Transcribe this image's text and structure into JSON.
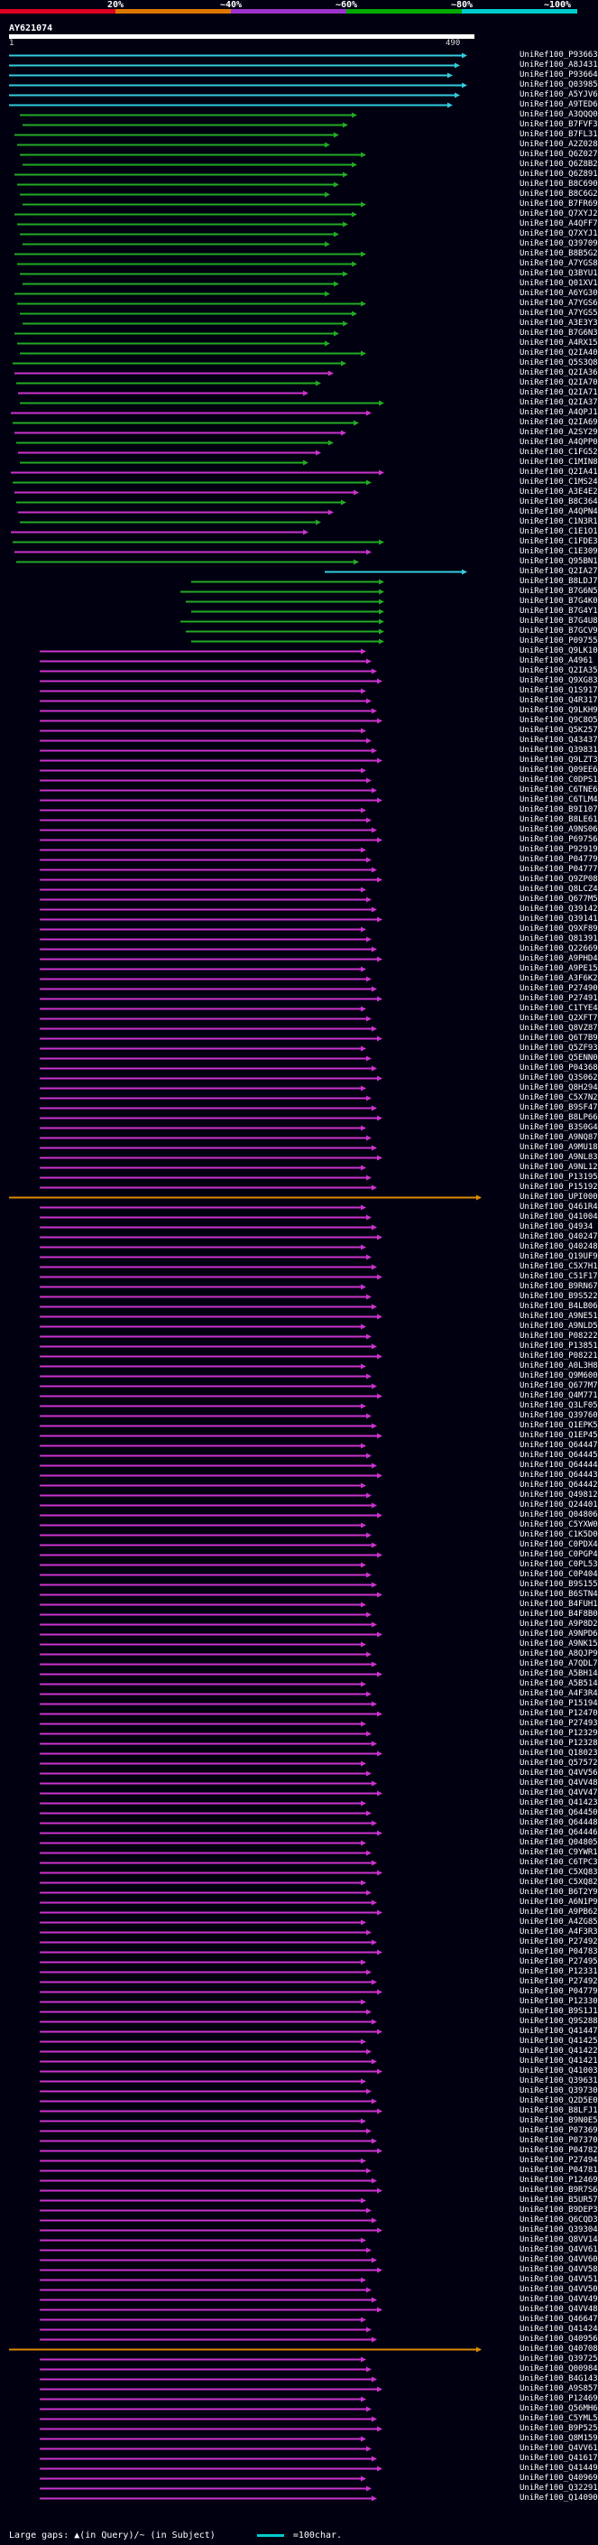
{
  "query": {
    "name": "AY621074",
    "start": "1",
    "end": "490"
  },
  "legend": {
    "ticks": [
      "20%",
      "~40%",
      "~60%",
      "~80%",
      "~100%"
    ],
    "colors": [
      "#dd0022",
      "#dd7700",
      "#9933cc",
      "#00aa00",
      "#00cccc"
    ]
  },
  "footer": {
    "gaps_text": "Large gaps: ▲(in Query)/~ (in Subject)",
    "scale_text": "=100char."
  },
  "hit_colors": {
    "cyan": "#33ccdd",
    "green": "#22aa22",
    "magenta": "#cc33cc",
    "orange": "#dd8800"
  },
  "hits": [
    "UniRef100_P93663",
    "UniRef100_A8J431",
    "UniRef100_P93664",
    "UniRef100_Q03985",
    "UniRef100_A5YJV6",
    "UniRef100_A9TED6",
    "UniRef100_A3QQQ0",
    "UniRef100_B7FVF3",
    "UniRef100_B7FL31",
    "UniRef100_A2Z028",
    "UniRef100_Q6Z027",
    "UniRef100_Q6Z8B2",
    "UniRef100_Q6Z891",
    "UniRef100_B8C690",
    "UniRef100_B8C6G2",
    "UniRef100_B7FR69",
    "UniRef100_Q7XYJ2",
    "UniRef100_A4QFF7",
    "UniRef100_Q7XYJ1",
    "UniRef100_Q39709",
    "UniRef100_B8B5G2",
    "UniRef100_A7YGS8",
    "UniRef100_Q3BYU1",
    "UniRef100_Q01XV1",
    "UniRef100_A6YG30",
    "UniRef100_A7YGS6",
    "UniRef100_A7YGS5",
    "UniRef100_A3E3Y3",
    "UniRef100_B7G6N3",
    "UniRef100_A4RX15",
    "UniRef100_Q2IA40",
    "UniRef100_Q5S3Q8",
    "UniRef100_Q2IA36",
    "UniRef100_Q2IA70",
    "UniRef100_Q2IA71",
    "UniRef100_Q2IA37",
    "UniRef100_A4QPJ1",
    "UniRef100_Q2IA69",
    "UniRef100_A2SY29",
    "UniRef100_A4QPP0",
    "UniRef100_C1FG52",
    "UniRef100_C1MIN8",
    "UniRef100_Q2IA41",
    "UniRef100_C1MS24",
    "UniRef100_A3E4E2",
    "UniRef100_B8C364",
    "UniRef100_A4QPN4",
    "UniRef100_C1N3R1",
    "UniRef100_C1E1O1",
    "UniRef100_C1FDE3",
    "UniRef100_C1E309",
    "UniRef100_Q95BN1",
    "UniRef100_Q2IA27",
    "UniRef100_B8LDJ7",
    "UniRef100_B7G6N5",
    "UniRef100_B7G4K0",
    "UniRef100_B7G4Y1",
    "UniRef100_B7G4U8",
    "UniRef100_B7GCV9",
    "UniRef100_P09755",
    "UniRef100_Q9LK10",
    "UniRef100_A4961",
    "UniRef100_Q2IA35",
    "UniRef100_Q9XG83",
    "UniRef100_Q1S917",
    "UniRef100_Q4R317",
    "UniRef100_Q9LKH9",
    "UniRef100_Q9C8O5",
    "UniRef100_Q5K257",
    "UniRef100_Q43437",
    "UniRef100_Q39831",
    "UniRef100_Q9LZT3",
    "UniRef100_Q09EE6",
    "UniRef100_C0DPS1",
    "UniRef100_C6TNE6",
    "UniRef100_C6TLM4",
    "UniRef100_B9I107",
    "UniRef100_B8LE61",
    "UniRef100_A9NS06",
    "UniRef100_P69756",
    "UniRef100_P92919",
    "UniRef100_P04779",
    "UniRef100_P04777",
    "UniRef100_Q9ZP08",
    "UniRef100_Q8LCZ4",
    "UniRef100_Q677M5",
    "UniRef100_Q39142",
    "UniRef100_Q39141",
    "UniRef100_Q9XF89",
    "UniRef100_Q81391",
    "UniRef100_Q22669",
    "UniRef100_A9PHD4",
    "UniRef100_A9PE15",
    "UniRef100_A3F6K2",
    "UniRef100_P27490",
    "UniRef100_P27491",
    "UniRef100_C1TYE4",
    "UniRef100_Q2XFT7",
    "UniRef100_Q8VZ87",
    "UniRef100_Q6T7B9",
    "UniRef100_Q5ZF93",
    "UniRef100_Q5ENN0",
    "UniRef100_P04368",
    "UniRef100_Q3S062",
    "UniRef100_Q8H294",
    "UniRef100_C5X7N2",
    "UniRef100_B9SF47",
    "UniRef100_B8LP66",
    "UniRef100_B3S0G4",
    "UniRef100_A9NQ87",
    "UniRef100_A9MU18",
    "UniRef100_A9NL83",
    "UniRef100_A9NL12",
    "UniRef100_P13195",
    "UniRef100_P15192",
    "UniRef100_UPI000",
    "UniRef100_Q461R4",
    "UniRef100_Q41004",
    "UniRef100_Q4934",
    "UniRef100_Q40247",
    "UniRef100_Q40248",
    "UniRef100_Q19UF9",
    "UniRef100_C5X7H1",
    "UniRef100_C51F17",
    "UniRef100_B9RN67",
    "UniRef100_B9S522",
    "UniRef100_B4LB06",
    "UniRef100_A9NE51",
    "UniRef100_A9NLD5",
    "UniRef100_P08222",
    "UniRef100_P13851",
    "UniRef100_P08221",
    "UniRef100_A0L3H8",
    "UniRef100_Q9M600",
    "UniRef100_Q677M7",
    "UniRef100_Q4M771",
    "UniRef100_Q3LF05",
    "UniRef100_Q39760",
    "UniRef100_Q1EPK5",
    "UniRef100_Q1EP45",
    "UniRef100_Q64447",
    "UniRef100_Q64445",
    "UniRef100_Q64444",
    "UniRef100_Q64443",
    "UniRef100_Q64442",
    "UniRef100_Q49812",
    "UniRef100_Q24401",
    "UniRef100_Q04806",
    "UniRef100_C5YXW0",
    "UniRef100_C1K5D0",
    "UniRef100_C0PDX4",
    "UniRef100_C0PGP4",
    "UniRef100_C0PL53",
    "UniRef100_C0P404",
    "UniRef100_B9S155",
    "UniRef100_B6STN4",
    "UniRef100_B4FUH1",
    "UniRef100_B4F8B0",
    "UniRef100_A9P8D2",
    "UniRef100_A9NPD6",
    "UniRef100_A9NK15",
    "UniRef100_A8QJP9",
    "UniRef100_A7QDL7",
    "UniRef100_A5BH14",
    "UniRef100_A5B514",
    "UniRef100_A4F3R4",
    "UniRef100_P15194",
    "UniRef100_P12470",
    "UniRef100_P27493",
    "UniRef100_P12329",
    "UniRef100_P12328",
    "UniRef100_Q18023",
    "UniRef100_Q57572",
    "UniRef100_Q4VV56",
    "UniRef100_Q4VV48",
    "UniRef100_Q4VV47",
    "UniRef100_Q41423",
    "UniRef100_Q64450",
    "UniRef100_Q64448",
    "UniRef100_Q64446",
    "UniRef100_Q04805",
    "UniRef100_C9YWR1",
    "UniRef100_C6TPC3",
    "UniRef100_C5XQ83",
    "UniRef100_C5XQ82",
    "UniRef100_B6T2Y9",
    "UniRef100_A6N1P9",
    "UniRef100_A9PB62",
    "UniRef100_A4ZG85",
    "UniRef100_A4F3R3",
    "UniRef100_P27492",
    "UniRef100_P04783",
    "UniRef100_P27495",
    "UniRef100_P12331",
    "UniRef100_P27492",
    "UniRef100_P04779",
    "UniRef100_P12330",
    "UniRef100_B9S1J1",
    "UniRef100_Q9S288",
    "UniRef100_Q41447",
    "UniRef100_Q41425",
    "UniRef100_Q41422",
    "UniRef100_Q41421",
    "UniRef100_Q41003",
    "UniRef100_Q39631",
    "UniRef100_Q39730",
    "UniRef100_Q2D5E0",
    "UniRef100_B8LFJ1",
    "UniRef100_B9N0E5",
    "UniRef100_P07369",
    "UniRef100_P07370",
    "UniRef100_P04782",
    "UniRef100_P27494",
    "UniRef100_P04781",
    "UniRef100_P12469",
    "UniRef100_B9R7S6",
    "UniRef100_B5UR57",
    "UniRef100_B9DEP3",
    "UniRef100_Q6CQD3",
    "UniRef100_Q39304",
    "UniRef100_Q8VV14",
    "UniRef100_Q4VV61",
    "UniRef100_Q4VV60",
    "UniRef100_Q4VV58",
    "UniRef100_Q4VV51",
    "UniRef100_Q4VV50",
    "UniRef100_Q4VV49",
    "UniRef100_Q4VV48",
    "UniRef100_Q46647",
    "UniRef100_Q41424",
    "UniRef100_Q40956",
    "UniRef100_Q40708",
    "UniRef100_Q39725",
    "UniRef100_Q00984",
    "UniRef100_B4G143",
    "UniRef100_A9S857",
    "UniRef100_P12469",
    "UniRef100_Q56MH6",
    "UniRef100_C5YML5",
    "UniRef100_B9P525",
    "UniRef100_Q8M159",
    "UniRef100_Q4VV61",
    "UniRef100_Q41617",
    "UniRef100_Q41449",
    "UniRef100_Q40969",
    "UniRef100_Q32291",
    "UniRef100_Q14090"
  ]
}
